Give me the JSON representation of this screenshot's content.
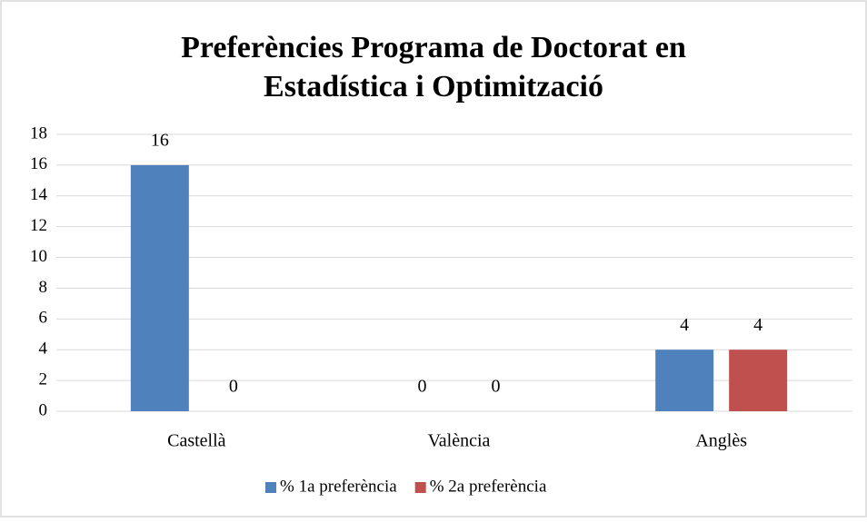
{
  "chart_data": {
    "type": "bar",
    "title": [
      "Preferències Programa de Doctorat en",
      "Estadística i Optimització"
    ],
    "categories": [
      "Castellà",
      "València",
      "Anglès"
    ],
    "series": [
      {
        "name": "% 1a preferència",
        "color": "#4f81bd",
        "values": [
          16,
          0,
          4
        ]
      },
      {
        "name": "% 2a preferència",
        "color": "#c0504d",
        "values": [
          0,
          0,
          4
        ]
      }
    ],
    "ylim": [
      0,
      18
    ],
    "yticks": [
      0,
      2,
      4,
      6,
      8,
      10,
      12,
      14,
      16,
      18
    ],
    "grid": true,
    "legend": "bottom"
  }
}
